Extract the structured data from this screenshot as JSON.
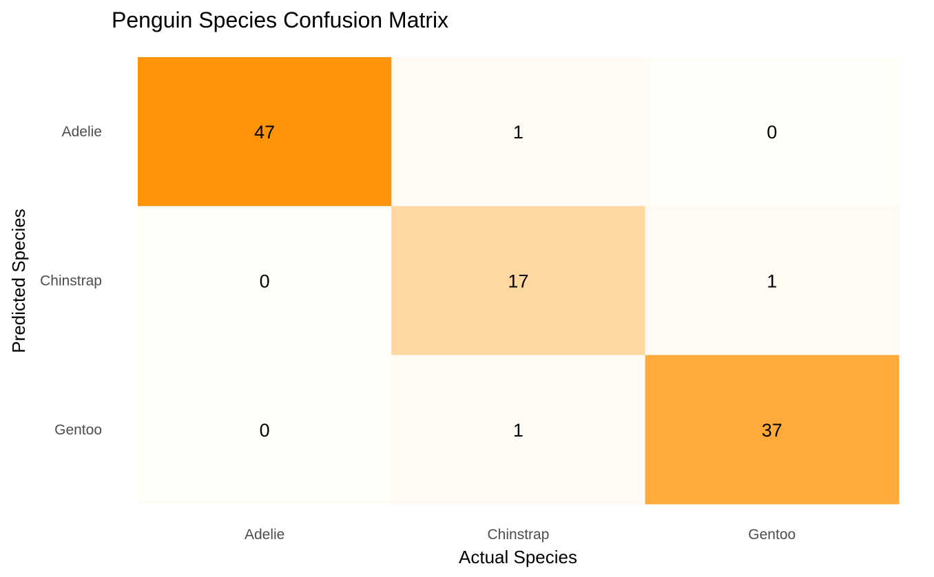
{
  "chart_data": {
    "type": "heatmap",
    "title": "Penguin Species Confusion Matrix",
    "xlabel": "Actual Species",
    "ylabel": "Predicted Species",
    "x_categories": [
      "Adelie",
      "Chinstrap",
      "Gentoo"
    ],
    "y_categories": [
      "Adelie",
      "Chinstrap",
      "Gentoo"
    ],
    "matrix": [
      [
        47,
        1,
        0
      ],
      [
        0,
        17,
        1
      ],
      [
        0,
        1,
        37
      ]
    ],
    "color_low": "#fffdf8",
    "color_high": "#ff9408",
    "grid": false,
    "legend": "none"
  }
}
